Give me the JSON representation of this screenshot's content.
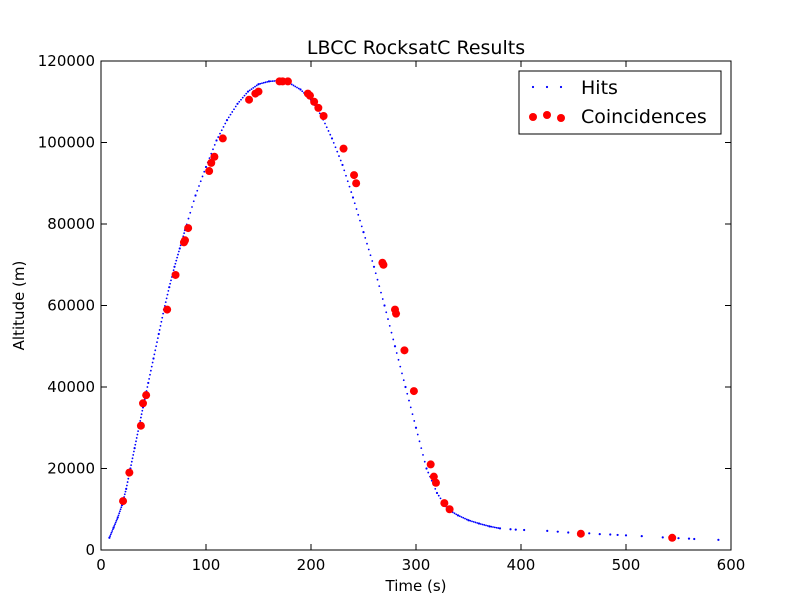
{
  "chart_data": {
    "type": "scatter",
    "title": "LBCC RocksatC Results",
    "xlabel": "Time (s)",
    "ylabel": "Altitude (m)",
    "xlim": [
      0,
      600
    ],
    "ylim": [
      0,
      120000
    ],
    "xticks": [
      0,
      100,
      200,
      300,
      400,
      500,
      600
    ],
    "yticks": [
      0,
      20000,
      40000,
      60000,
      80000,
      100000,
      120000
    ],
    "legend_position": "top-right",
    "series": [
      {
        "name": "Hits",
        "style": "dots",
        "color": "#0000ff",
        "x": [
          8,
          12,
          16,
          20,
          24,
          28,
          32,
          36,
          40,
          45,
          50,
          55,
          60,
          65,
          70,
          75,
          80,
          90,
          100,
          110,
          120,
          130,
          140,
          150,
          160,
          170,
          175,
          180,
          190,
          200,
          210,
          220,
          230,
          240,
          250,
          260,
          270,
          280,
          290,
          300,
          310,
          320,
          330,
          340,
          350,
          360,
          370,
          380,
          390,
          395,
          403,
          425,
          435,
          445,
          455,
          465,
          475,
          485,
          492,
          500,
          515,
          535,
          550,
          560,
          565,
          588
        ],
        "y": [
          3000,
          5500,
          8000,
          11000,
          15000,
          20000,
          25000,
          30000,
          35000,
          41000,
          47000,
          53000,
          59000,
          64500,
          69500,
          74000,
          78500,
          87000,
          94000,
          100500,
          105500,
          109500,
          112500,
          114300,
          115000,
          115200,
          115000,
          114500,
          113000,
          110500,
          106500,
          101000,
          94500,
          86500,
          78000,
          69500,
          60000,
          50000,
          40000,
          30000,
          20000,
          14000,
          10000,
          8500,
          7300,
          6500,
          5800,
          5300,
          5100,
          5000,
          4900,
          4700,
          4500,
          4300,
          4200,
          4100,
          3900,
          3800,
          3700,
          3600,
          3400,
          3100,
          2900,
          2800,
          2700,
          2500
        ]
      },
      {
        "name": "Coincidences",
        "style": "markers",
        "color": "#ff0000",
        "x": [
          21,
          27,
          38,
          40,
          43,
          63,
          71,
          79,
          80,
          83,
          103,
          105,
          108,
          116,
          141,
          147,
          150,
          170,
          173,
          178,
          197,
          199,
          203,
          207,
          212,
          231,
          241,
          243,
          268,
          269,
          280,
          281,
          289,
          298,
          314,
          317,
          319,
          327,
          332,
          457,
          544
        ],
        "y": [
          12000,
          19000,
          30500,
          36000,
          38000,
          59000,
          67500,
          75500,
          76000,
          79000,
          93000,
          95000,
          96500,
          101000,
          110500,
          112000,
          112500,
          115000,
          115000,
          115000,
          112000,
          111500,
          110000,
          108500,
          106500,
          98500,
          92000,
          90000,
          70500,
          70000,
          59000,
          58000,
          49000,
          39000,
          21000,
          18000,
          16500,
          11500,
          10000,
          4000,
          3000
        ]
      }
    ]
  }
}
